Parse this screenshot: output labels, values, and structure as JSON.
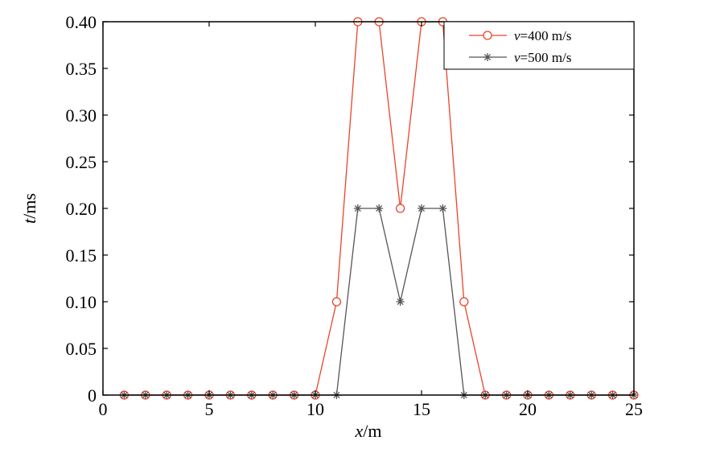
{
  "chart_data": {
    "type": "line",
    "title": "",
    "xlabel": {
      "var": "x",
      "unit": "/m"
    },
    "ylabel": {
      "var": "t",
      "unit": "/ms"
    },
    "xlim": [
      0,
      25
    ],
    "ylim": [
      0,
      0.4
    ],
    "x_ticks": [
      0,
      5,
      10,
      15,
      20,
      25
    ],
    "x_tick_labels": [
      "0",
      "5",
      "10",
      "15",
      "20",
      "25"
    ],
    "y_ticks": [
      0,
      0.05,
      0.1,
      0.15,
      0.2,
      0.25,
      0.3,
      0.35,
      0.4
    ],
    "y_tick_labels": [
      "0",
      "0.05",
      "0.10",
      "0.15",
      "0.20",
      "0.25",
      "0.30",
      "0.35",
      "0.40"
    ],
    "grid": false,
    "legend_position": "top-right",
    "x": [
      1,
      2,
      3,
      4,
      5,
      6,
      7,
      8,
      9,
      10,
      11,
      12,
      13,
      14,
      15,
      16,
      17,
      18,
      19,
      20,
      21,
      22,
      23,
      24,
      25
    ],
    "series": [
      {
        "name": {
          "var": "v",
          "rest": "=400 m/s"
        },
        "color": "#e8452a",
        "marker": "circle",
        "values": [
          0,
          0,
          0,
          0,
          0,
          0,
          0,
          0,
          0,
          0,
          0.1,
          0.4,
          0.4,
          0.2,
          0.4,
          0.4,
          0.1,
          0,
          0,
          0,
          0,
          0,
          0,
          0,
          0
        ]
      },
      {
        "name": {
          "var": "v",
          "rest": "=500 m/s"
        },
        "color": "#555555",
        "marker": "star",
        "values": [
          0,
          0,
          0,
          0,
          0,
          0,
          0,
          0,
          0,
          0,
          0,
          0.2,
          0.2,
          0.1,
          0.2,
          0.2,
          0,
          0,
          0,
          0,
          0,
          0,
          0,
          0,
          0
        ]
      }
    ]
  }
}
